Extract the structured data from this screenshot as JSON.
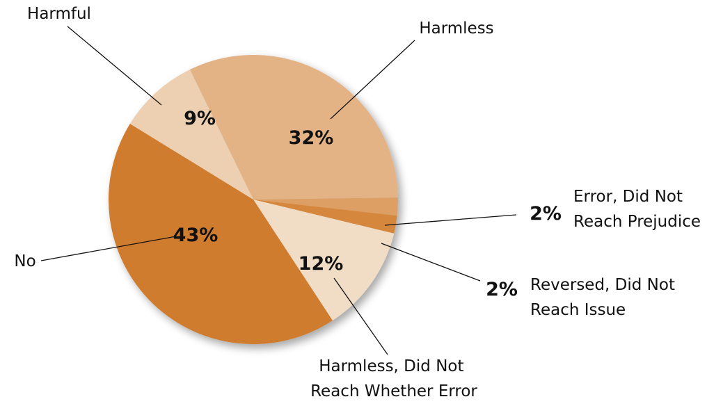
{
  "chart_data": {
    "type": "pie",
    "slices": [
      {
        "label": "Harmless",
        "value": 32,
        "pct_label": "32%",
        "color": "#e3b386"
      },
      {
        "label": "Error, Did Not Reach Prejudice",
        "value": 2,
        "pct_label": "2%",
        "color": "#dd9f64"
      },
      {
        "label": "Reversed, Did Not Reach Issue",
        "value": 2,
        "pct_label": "2%",
        "color": "#d5883c"
      },
      {
        "label": "Harmless, Did Not Reach Whether Error",
        "value": 12,
        "pct_label": "12%",
        "color": "#f1dcc5"
      },
      {
        "label": "No",
        "value": 43,
        "pct_label": "43%",
        "color": "#cf7b2d"
      },
      {
        "label": "Harmful",
        "value": 9,
        "pct_label": "9%",
        "color": "#edd0b2"
      }
    ],
    "legend": "none (labels with leader lines)"
  }
}
